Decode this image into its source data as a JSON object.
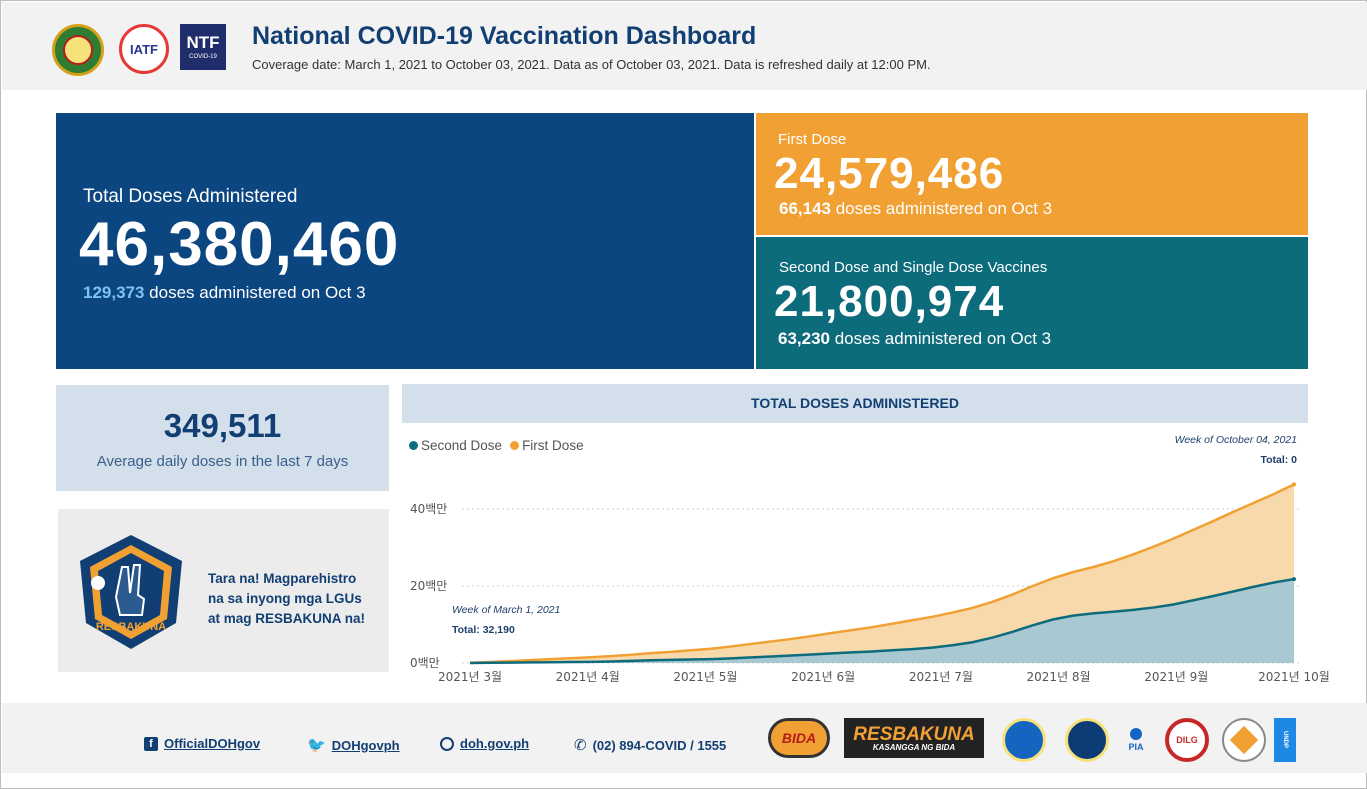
{
  "header": {
    "title": "National COVID-19 Vaccination Dashboard",
    "coverage": "Coverage date: March 1, 2021 to October 03, 2021. Data as of October 03, 2021. Data is refreshed daily at 12:00 PM.",
    "logos": {
      "iatf": "IATF",
      "ntf": "NTF",
      "ntf_sub": "COVID-19"
    }
  },
  "total": {
    "label": "Total Doses Administered",
    "value": "46,380,460",
    "daily_count": "129,373",
    "daily_text": " doses administered on Oct 3"
  },
  "first_dose": {
    "label": "First Dose",
    "value": "24,579,486",
    "daily_count": "66,143",
    "daily_text": " doses administered on Oct 3"
  },
  "second_dose": {
    "label": "Second Dose and Single Dose Vaccines",
    "value": "21,800,974",
    "daily_count": "63,230",
    "daily_text": " doses administered on Oct 3"
  },
  "average": {
    "value": "349,511",
    "label": "Average daily doses in the last 7 days"
  },
  "promo": {
    "line1": "Tara na! Magparehistro",
    "line2": "na sa inyong mga LGUs",
    "line3": "at mag RESBAKUNA na!",
    "badge_text": "RESBAKUNA"
  },
  "colors": {
    "navy": "#0b4680",
    "orange": "#f1a033",
    "teal": "#0d6c7c",
    "first_fill": "#f7d9ab",
    "second_fill": "#a8c9d2"
  },
  "chart_data": {
    "type": "area",
    "title": "TOTAL DOSES ADMINISTERED",
    "x_ticks": [
      "2021년 3월",
      "2021년 4월",
      "2021년 5월",
      "2021년 6월",
      "2021년 7월",
      "2021년 8월",
      "2021년 9월",
      "2021년 10월"
    ],
    "y_ticks": [
      "0백만",
      "20백만",
      "40백만"
    ],
    "ylim": [
      0,
      40000000
    ],
    "stacked": true,
    "series": [
      {
        "name": "Second Dose",
        "color": "#0d6c7c",
        "values": [
          0.0,
          0.05,
          0.1,
          0.15,
          0.2,
          0.25,
          0.3,
          0.4,
          0.55,
          0.7,
          0.8,
          0.9,
          1.0,
          1.2,
          1.45,
          1.7,
          1.95,
          2.2,
          2.5,
          2.75,
          3.0,
          3.3,
          3.6,
          4.0,
          4.6,
          5.4,
          6.6,
          8.1,
          9.8,
          11.3,
          12.3,
          12.9,
          13.3,
          13.8,
          14.4,
          15.2,
          16.3,
          17.4,
          18.6,
          19.8,
          20.9,
          21.8
        ]
      },
      {
        "name": "First Dose",
        "color": "#f1a033",
        "values": [
          0.05,
          0.2,
          0.4,
          0.6,
          0.8,
          1.0,
          1.2,
          1.4,
          1.6,
          1.85,
          2.1,
          2.4,
          2.7,
          3.1,
          3.5,
          3.9,
          4.3,
          4.8,
          5.3,
          5.8,
          6.3,
          6.9,
          7.5,
          8.0,
          8.5,
          8.9,
          9.3,
          9.7,
          10.2,
          10.7,
          11.3,
          12.0,
          13.1,
          14.4,
          15.8,
          17.1,
          18.3,
          19.5,
          20.7,
          21.8,
          23.0,
          24.58
        ]
      }
    ],
    "annotation_start": {
      "label": "Week of March 1, 2021",
      "total": "Total: 32,190"
    },
    "annotation_end": {
      "label": "Week of October 04, 2021",
      "total": "Total: 0"
    },
    "legend_position": "top-left",
    "grid": true
  },
  "footer": {
    "facebook": "OfficialDOHgov",
    "twitter": "DOHgovph",
    "website": "doh.gov.ph",
    "phone": "(02) 894-COVID / 1555",
    "logos": {
      "bida": "BIDA",
      "resbakuna": "RESBAKUNA",
      "resbakuna_sub": "KASANGGA NG BIDA",
      "pia": "PIA",
      "dilg": "DILG",
      "undp": "UNDP"
    }
  }
}
